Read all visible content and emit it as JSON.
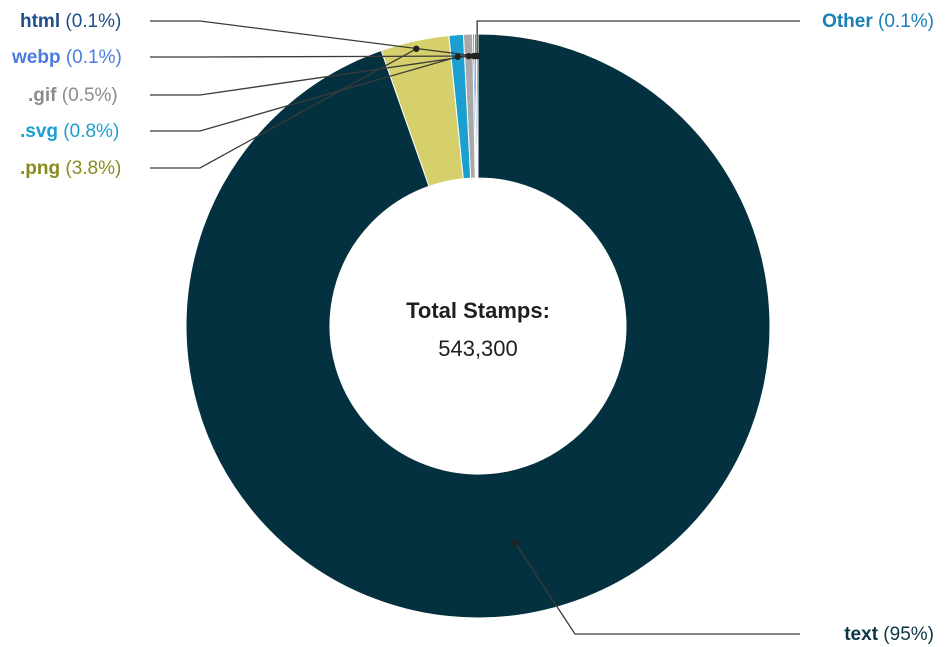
{
  "chart_data": {
    "type": "pie",
    "donut": true,
    "center": {
      "title": "Total Stamps:",
      "value": "543,300"
    },
    "slices": [
      {
        "name": "text",
        "pct_label": "(95%)",
        "value": 95,
        "color": "#04313f"
      },
      {
        "name": ".png",
        "pct_label": "(3.8%)",
        "value": 3.8,
        "color": "#d5d06b"
      },
      {
        "name": ".svg",
        "pct_label": "(0.8%)",
        "value": 0.8,
        "color": "#1a9fd0"
      },
      {
        "name": ".gif",
        "pct_label": "(0.5%)",
        "value": 0.5,
        "color": "#a9a9a9"
      },
      {
        "name": "webp",
        "pct_label": "(0.1%)",
        "value": 0.1,
        "color": "#4b7be0"
      },
      {
        "name": "html",
        "pct_label": "(0.1%)",
        "value": 0.1,
        "color": "#1f4e8a"
      },
      {
        "name": "Other",
        "pct_label": "(0.1%)",
        "value": 0.1,
        "color": "#1a7fb8"
      }
    ],
    "label_colors": {
      "text": "#0b3646",
      ".png": "#8a8a1e",
      ".svg": "#1a9fd0",
      ".gif": "#8c8c8c",
      "webp": "#4b7be0",
      "html": "#1f4e8a",
      "Other": "#1a7fb8"
    }
  }
}
